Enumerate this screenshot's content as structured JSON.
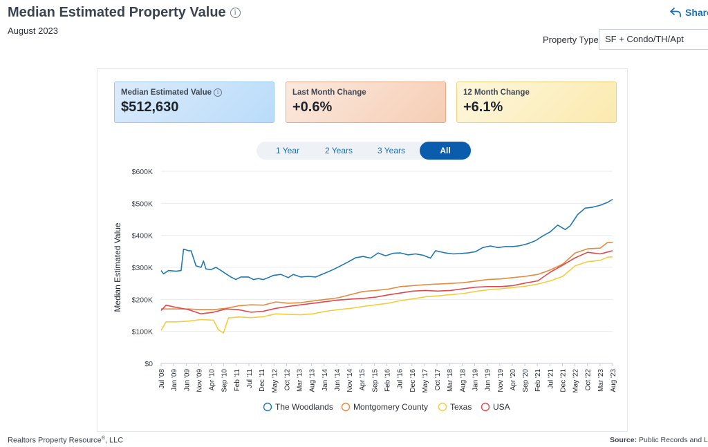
{
  "header": {
    "title": "Median Estimated Property Value",
    "date": "August 2023",
    "share_label": "Share",
    "property_type_label": "Property Type",
    "property_type_value": "SF + Condo/TH/Apt"
  },
  "stats": [
    {
      "label": "Median Estimated Value",
      "value": "$512,630"
    },
    {
      "label": "Last Month Change",
      "value": "+0.6%"
    },
    {
      "label": "12 Month Change",
      "value": "+6.1%"
    }
  ],
  "range_buttons": [
    "1 Year",
    "2 Years",
    "3 Years",
    "All"
  ],
  "active_range": "All",
  "footer": {
    "left": "Realtors Property Resource",
    "left_mark": "®",
    "left_suffix": ", LLC",
    "source_label": "Source:",
    "source_text": "Public Records and Listings"
  },
  "colors": {
    "The Woodlands": "#1f77b4",
    "Montgomery County": "#e8893a",
    "Texas": "#f6cc3c",
    "USA": "#e0474c"
  },
  "chart_data": {
    "type": "line",
    "ylabel": "Median Estimated Value",
    "ylim": [
      0,
      600000
    ],
    "yticks": [
      0,
      100000,
      200000,
      300000,
      400000,
      500000,
      600000
    ],
    "ytick_labels": [
      "$0",
      "$100K",
      "$200K",
      "$300K",
      "$400K",
      "$500K",
      "$600K"
    ],
    "xlim": [
      "2008-07",
      "2023-08"
    ],
    "xtick_labels": [
      "Jul '08",
      "Jan '09",
      "Jun '09",
      "Nov '09",
      "Apr '10",
      "Sep '10",
      "Feb '11",
      "Jul '11",
      "Dec '11",
      "May '12",
      "Oct '12",
      "Mar '13",
      "Aug '13",
      "Jan '14",
      "Jun '14",
      "Nov '14",
      "Apr '15",
      "Sep '15",
      "Feb '16",
      "Jul '16",
      "Dec '16",
      "May '17",
      "Oct '17",
      "Mar '18",
      "Aug '18",
      "Jan '19",
      "Jun '19",
      "Nov '19",
      "Apr '20",
      "Sep '20",
      "Feb '21",
      "Jul '21",
      "Dec '21",
      "May '22",
      "Oct '22",
      "Mar '23",
      "Aug '23"
    ],
    "legend_position": "bottom",
    "grid": true,
    "series": [
      {
        "name": "The Woodlands",
        "points": [
          [
            "2008-07",
            290000
          ],
          [
            "2008-08",
            280000
          ],
          [
            "2008-10",
            290000
          ],
          [
            "2009-01",
            288000
          ],
          [
            "2009-03",
            290000
          ],
          [
            "2009-04",
            357000
          ],
          [
            "2009-06",
            352000
          ],
          [
            "2009-07",
            352000
          ],
          [
            "2009-09",
            305000
          ],
          [
            "2009-11",
            300000
          ],
          [
            "2009-12",
            320000
          ],
          [
            "2010-01",
            295000
          ],
          [
            "2010-03",
            293000
          ],
          [
            "2010-05",
            300000
          ],
          [
            "2010-07",
            290000
          ],
          [
            "2010-09",
            280000
          ],
          [
            "2010-11",
            270000
          ],
          [
            "2011-01",
            262000
          ],
          [
            "2011-03",
            270000
          ],
          [
            "2011-06",
            270000
          ],
          [
            "2011-08",
            262000
          ],
          [
            "2011-10",
            265000
          ],
          [
            "2011-12",
            262000
          ],
          [
            "2012-02",
            268000
          ],
          [
            "2012-04",
            275000
          ],
          [
            "2012-07",
            278000
          ],
          [
            "2012-10",
            268000
          ],
          [
            "2012-12",
            278000
          ],
          [
            "2013-03",
            270000
          ],
          [
            "2013-06",
            272000
          ],
          [
            "2013-09",
            270000
          ],
          [
            "2014-01",
            283000
          ],
          [
            "2014-04",
            293000
          ],
          [
            "2014-07",
            305000
          ],
          [
            "2014-10",
            317000
          ],
          [
            "2015-01",
            330000
          ],
          [
            "2015-04",
            334000
          ],
          [
            "2015-07",
            329000
          ],
          [
            "2015-10",
            345000
          ],
          [
            "2016-01",
            336000
          ],
          [
            "2016-04",
            344000
          ],
          [
            "2016-07",
            345000
          ],
          [
            "2016-10",
            339000
          ],
          [
            "2017-01",
            342000
          ],
          [
            "2017-04",
            338000
          ],
          [
            "2017-07",
            329000
          ],
          [
            "2017-09",
            352000
          ],
          [
            "2018-01",
            345000
          ],
          [
            "2018-04",
            342000
          ],
          [
            "2018-07",
            343000
          ],
          [
            "2018-10",
            345000
          ],
          [
            "2019-01",
            349000
          ],
          [
            "2019-04",
            362000
          ],
          [
            "2019-07",
            367000
          ],
          [
            "2019-10",
            362000
          ],
          [
            "2020-01",
            365000
          ],
          [
            "2020-04",
            365000
          ],
          [
            "2020-07",
            368000
          ],
          [
            "2020-10",
            374000
          ],
          [
            "2021-01",
            383000
          ],
          [
            "2021-04",
            398000
          ],
          [
            "2021-07",
            411000
          ],
          [
            "2021-10",
            432000
          ],
          [
            "2022-01",
            418000
          ],
          [
            "2022-03",
            430000
          ],
          [
            "2022-06",
            465000
          ],
          [
            "2022-09",
            485000
          ],
          [
            "2022-12",
            488000
          ],
          [
            "2023-03",
            494000
          ],
          [
            "2023-06",
            503000
          ],
          [
            "2023-08",
            512630
          ]
        ]
      },
      {
        "name": "Montgomery County",
        "points": [
          [
            "2008-07",
            170000
          ],
          [
            "2009-01",
            170000
          ],
          [
            "2009-06",
            170000
          ],
          [
            "2009-11",
            168000
          ],
          [
            "2010-04",
            168000
          ],
          [
            "2010-09",
            172000
          ],
          [
            "2011-02",
            180000
          ],
          [
            "2011-07",
            183000
          ],
          [
            "2011-12",
            182000
          ],
          [
            "2012-05",
            192000
          ],
          [
            "2012-10",
            188000
          ],
          [
            "2013-03",
            190000
          ],
          [
            "2013-08",
            195000
          ],
          [
            "2014-01",
            200000
          ],
          [
            "2014-06",
            205000
          ],
          [
            "2014-11",
            215000
          ],
          [
            "2015-04",
            225000
          ],
          [
            "2015-09",
            228000
          ],
          [
            "2016-02",
            232000
          ],
          [
            "2016-07",
            240000
          ],
          [
            "2016-12",
            243000
          ],
          [
            "2017-05",
            246000
          ],
          [
            "2017-10",
            248000
          ],
          [
            "2018-03",
            250000
          ],
          [
            "2018-08",
            252000
          ],
          [
            "2019-01",
            257000
          ],
          [
            "2019-06",
            262000
          ],
          [
            "2019-11",
            264000
          ],
          [
            "2020-04",
            268000
          ],
          [
            "2020-09",
            272000
          ],
          [
            "2021-02",
            278000
          ],
          [
            "2021-07",
            292000
          ],
          [
            "2021-12",
            310000
          ],
          [
            "2022-05",
            345000
          ],
          [
            "2022-10",
            358000
          ],
          [
            "2023-03",
            360000
          ],
          [
            "2023-06",
            378000
          ],
          [
            "2023-08",
            378000
          ]
        ]
      },
      {
        "name": "Texas",
        "points": [
          [
            "2008-07",
            103000
          ],
          [
            "2008-09",
            130000
          ],
          [
            "2009-01",
            130000
          ],
          [
            "2009-06",
            132000
          ],
          [
            "2009-11",
            137000
          ],
          [
            "2010-04",
            135000
          ],
          [
            "2010-06",
            105000
          ],
          [
            "2010-08",
            95000
          ],
          [
            "2010-10",
            142000
          ],
          [
            "2011-02",
            145000
          ],
          [
            "2011-07",
            143000
          ],
          [
            "2011-12",
            146000
          ],
          [
            "2012-05",
            155000
          ],
          [
            "2012-10",
            153000
          ],
          [
            "2013-03",
            152000
          ],
          [
            "2013-08",
            155000
          ],
          [
            "2014-01",
            163000
          ],
          [
            "2014-06",
            168000
          ],
          [
            "2014-11",
            172000
          ],
          [
            "2015-04",
            178000
          ],
          [
            "2015-09",
            183000
          ],
          [
            "2016-02",
            188000
          ],
          [
            "2016-07",
            196000
          ],
          [
            "2016-12",
            202000
          ],
          [
            "2017-05",
            208000
          ],
          [
            "2017-10",
            211000
          ],
          [
            "2018-03",
            215000
          ],
          [
            "2018-08",
            218000
          ],
          [
            "2019-01",
            225000
          ],
          [
            "2019-06",
            230000
          ],
          [
            "2019-11",
            233000
          ],
          [
            "2020-04",
            237000
          ],
          [
            "2020-09",
            241000
          ],
          [
            "2021-02",
            248000
          ],
          [
            "2021-07",
            258000
          ],
          [
            "2021-12",
            272000
          ],
          [
            "2022-05",
            305000
          ],
          [
            "2022-10",
            318000
          ],
          [
            "2023-03",
            322000
          ],
          [
            "2023-06",
            332000
          ],
          [
            "2023-08",
            333000
          ]
        ]
      },
      {
        "name": "USA",
        "points": [
          [
            "2008-07",
            165000
          ],
          [
            "2008-09",
            182000
          ],
          [
            "2009-01",
            175000
          ],
          [
            "2009-06",
            168000
          ],
          [
            "2009-11",
            155000
          ],
          [
            "2010-04",
            160000
          ],
          [
            "2010-09",
            170000
          ],
          [
            "2011-02",
            168000
          ],
          [
            "2011-07",
            160000
          ],
          [
            "2011-12",
            163000
          ],
          [
            "2012-05",
            172000
          ],
          [
            "2012-10",
            178000
          ],
          [
            "2013-03",
            183000
          ],
          [
            "2013-08",
            188000
          ],
          [
            "2014-01",
            193000
          ],
          [
            "2014-06",
            198000
          ],
          [
            "2014-11",
            201000
          ],
          [
            "2015-04",
            203000
          ],
          [
            "2015-09",
            207000
          ],
          [
            "2016-02",
            214000
          ],
          [
            "2016-07",
            220000
          ],
          [
            "2016-12",
            226000
          ],
          [
            "2017-05",
            228000
          ],
          [
            "2017-10",
            226000
          ],
          [
            "2018-03",
            228000
          ],
          [
            "2018-08",
            233000
          ],
          [
            "2019-01",
            238000
          ],
          [
            "2019-06",
            240000
          ],
          [
            "2019-11",
            240000
          ],
          [
            "2020-04",
            243000
          ],
          [
            "2020-09",
            251000
          ],
          [
            "2021-02",
            258000
          ],
          [
            "2021-07",
            285000
          ],
          [
            "2021-12",
            307000
          ],
          [
            "2022-05",
            330000
          ],
          [
            "2022-10",
            347000
          ],
          [
            "2023-03",
            342000
          ],
          [
            "2023-06",
            348000
          ],
          [
            "2023-08",
            352000
          ]
        ]
      }
    ]
  }
}
